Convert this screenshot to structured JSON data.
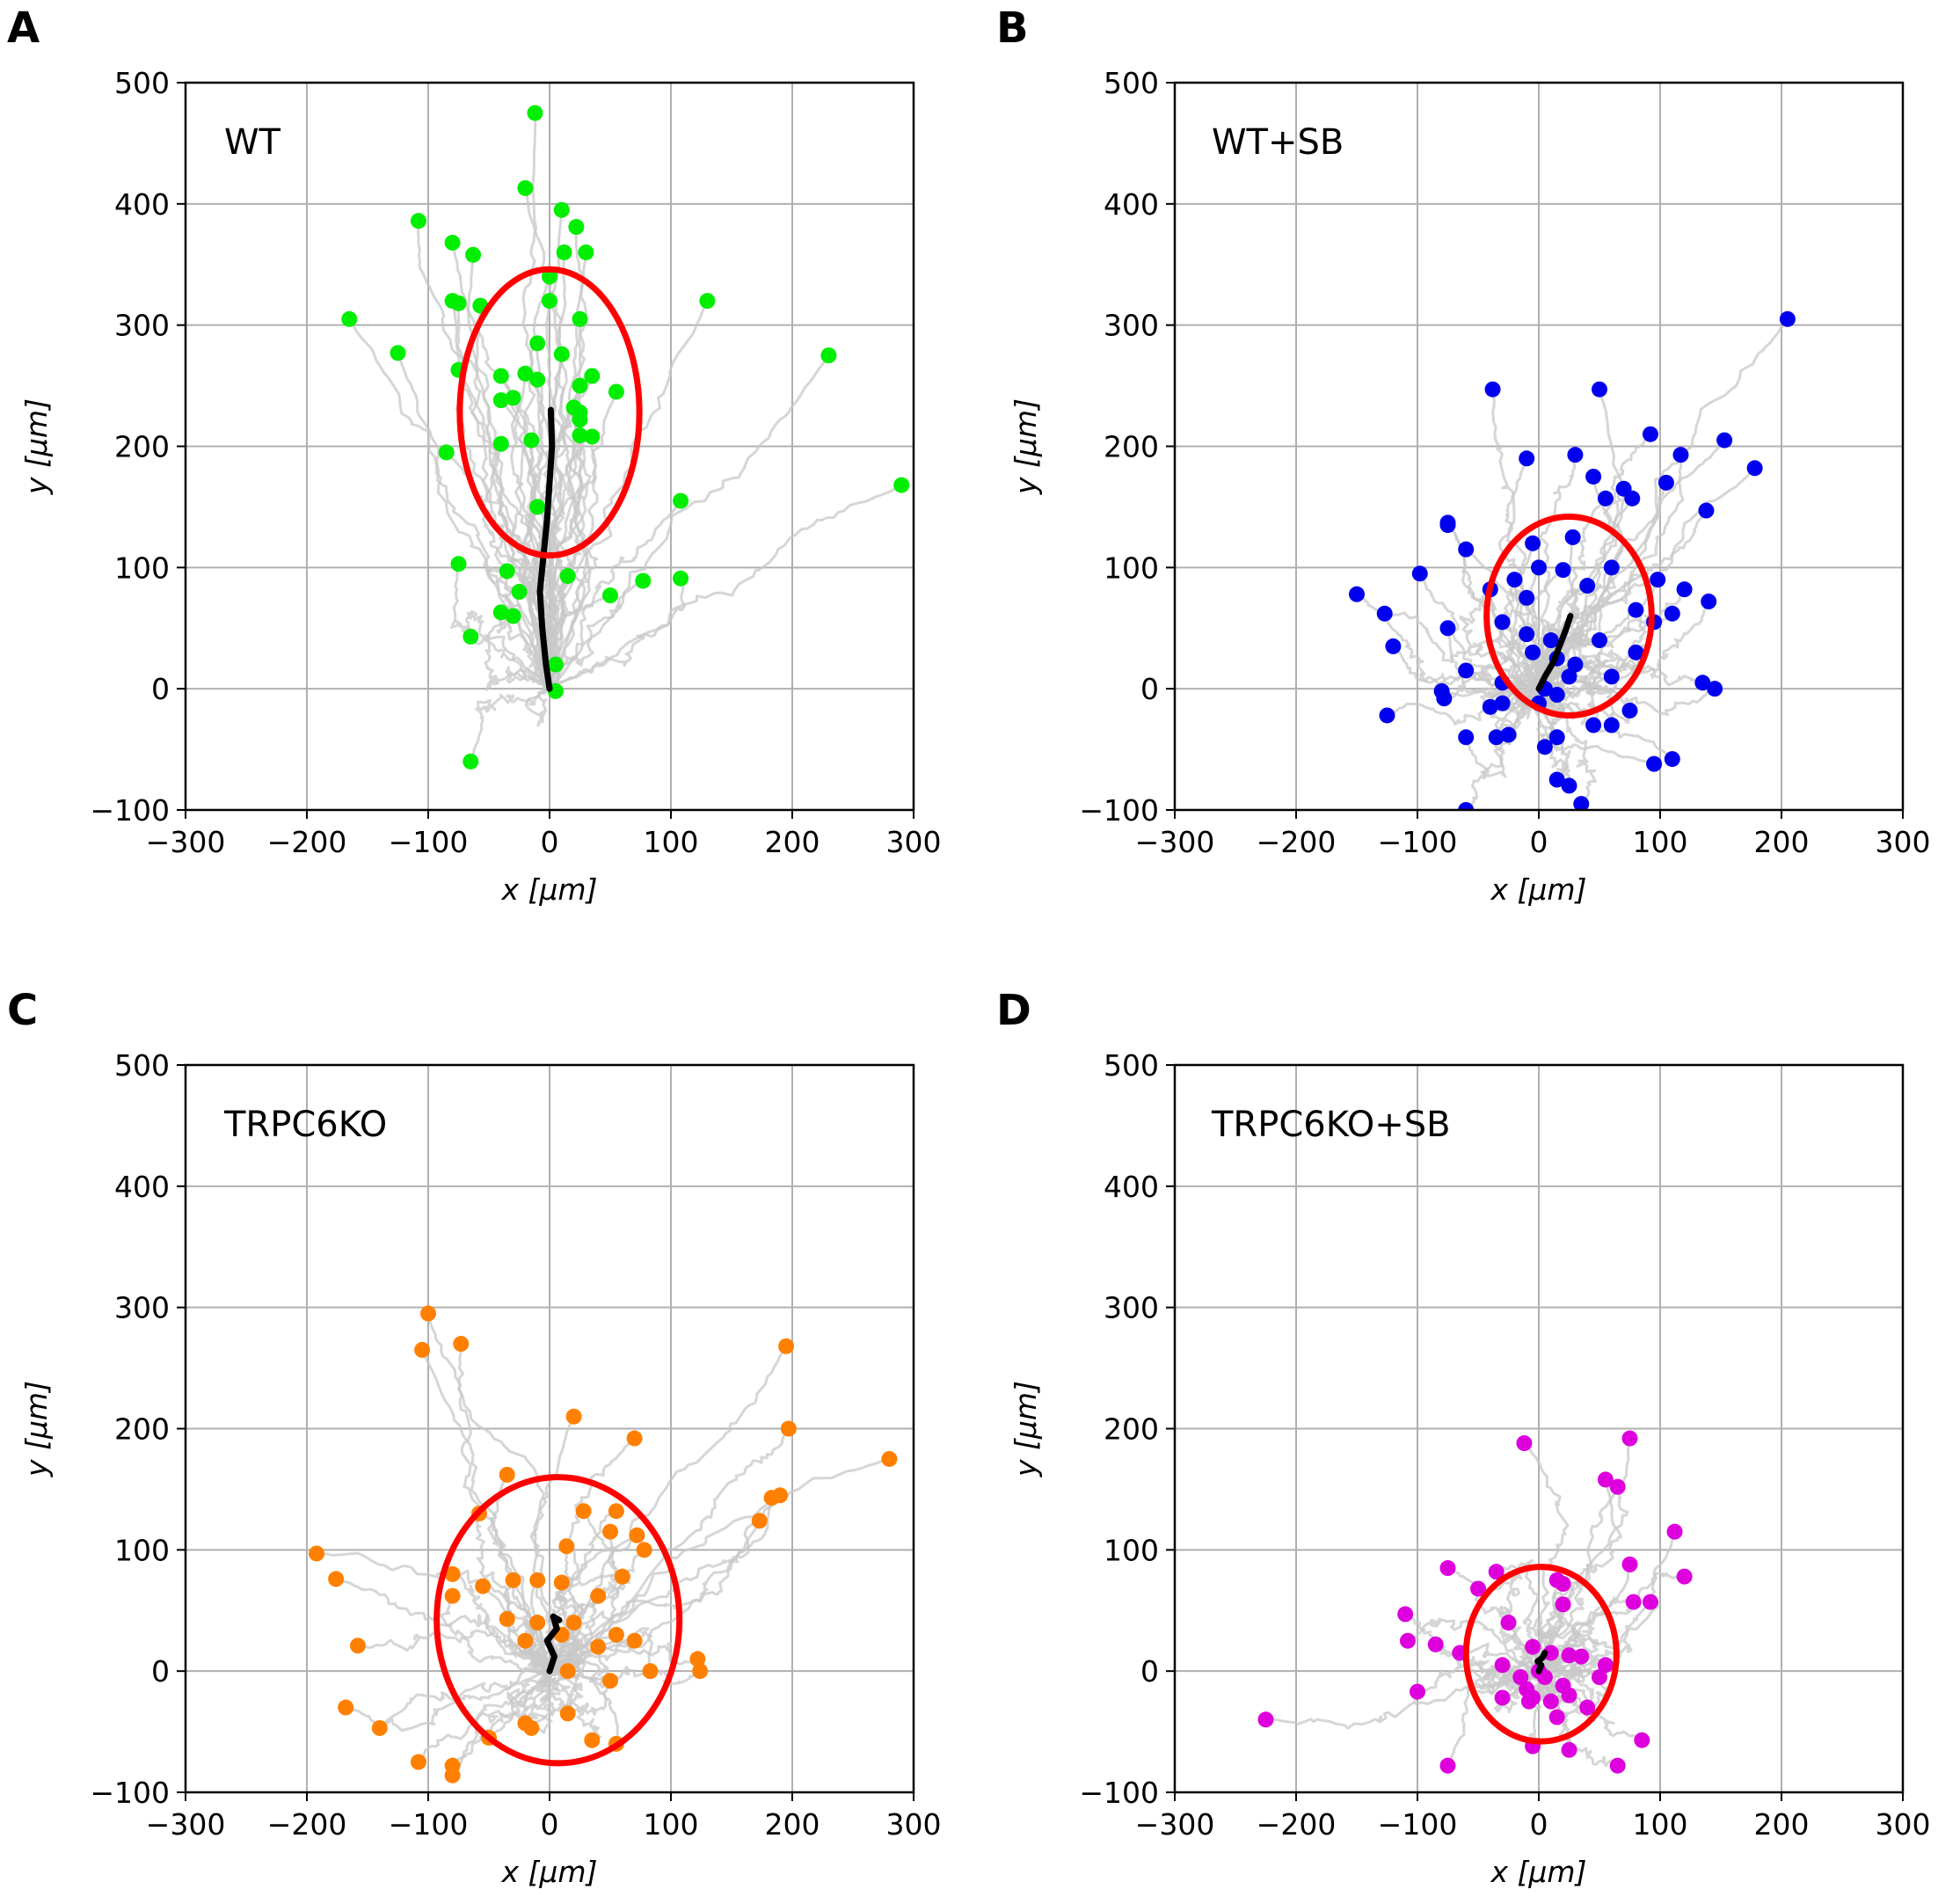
{
  "chart_data": [
    {
      "type": "scatter",
      "panel_letter": "A",
      "title": "WT",
      "xlabel": "x [μm]",
      "ylabel": "y [μm]",
      "xlim": [
        -300,
        300
      ],
      "ylim": [
        -100,
        500
      ],
      "xticks": [
        "−300",
        "−200",
        "−100",
        "0",
        "100",
        "200",
        "300"
      ],
      "yticks": [
        "−100",
        "0",
        "100",
        "200",
        "300",
        "400",
        "500"
      ],
      "grid": true,
      "point_color": "#00ee00",
      "ellipse": {
        "center": [
          0,
          228
        ],
        "semi_axes": [
          74,
          118
        ],
        "color": "#ff0000"
      },
      "mean_trajectory": [
        [
          0,
          0
        ],
        [
          -3,
          20
        ],
        [
          -6,
          50
        ],
        [
          -8,
          80
        ],
        [
          -5,
          110
        ],
        [
          -2,
          140
        ],
        [
          0,
          170
        ],
        [
          2,
          200
        ],
        [
          1,
          230
        ]
      ],
      "endpoints": [
        [
          -12,
          475
        ],
        [
          -20,
          413
        ],
        [
          10,
          395
        ],
        [
          -108,
          386
        ],
        [
          22,
          381
        ],
        [
          -80,
          368
        ],
        [
          12,
          360
        ],
        [
          30,
          360
        ],
        [
          -63,
          358
        ],
        [
          -75,
          318
        ],
        [
          -57,
          316
        ],
        [
          0,
          340
        ],
        [
          -80,
          320
        ],
        [
          0,
          320
        ],
        [
          130,
          320
        ],
        [
          -165,
          305
        ],
        [
          25,
          305
        ],
        [
          -125,
          277
        ],
        [
          -10,
          285
        ],
        [
          230,
          275
        ],
        [
          10,
          276
        ],
        [
          -75,
          263
        ],
        [
          -40,
          258
        ],
        [
          -20,
          260
        ],
        [
          -10,
          255
        ],
        [
          35,
          258
        ],
        [
          25,
          250
        ],
        [
          -40,
          238
        ],
        [
          20,
          232
        ],
        [
          55,
          245
        ],
        [
          -30,
          240
        ],
        [
          25,
          228
        ],
        [
          25,
          222
        ],
        [
          -40,
          202
        ],
        [
          -15,
          205
        ],
        [
          35,
          208
        ],
        [
          -85,
          195
        ],
        [
          25,
          209
        ],
        [
          290,
          168
        ],
        [
          108,
          155
        ],
        [
          -10,
          150
        ],
        [
          -75,
          103
        ],
        [
          -35,
          97
        ],
        [
          15,
          93
        ],
        [
          108,
          91
        ],
        [
          77,
          89
        ],
        [
          -25,
          80
        ],
        [
          50,
          77
        ],
        [
          -40,
          63
        ],
        [
          -30,
          60
        ],
        [
          -65,
          43
        ],
        [
          5,
          20
        ],
        [
          5,
          -2
        ],
        [
          -65,
          -60
        ]
      ],
      "trajectory_seeds": 40
    },
    {
      "type": "scatter",
      "panel_letter": "B",
      "title": "WT+SB",
      "xlabel": "x [μm]",
      "ylabel": "y [μm]",
      "xlim": [
        -300,
        300
      ],
      "ylim": [
        -100,
        500
      ],
      "xticks": [
        "−300",
        "−200",
        "−100",
        "0",
        "100",
        "200",
        "300"
      ],
      "yticks": [
        "−100",
        "0",
        "100",
        "200",
        "300",
        "400",
        "500"
      ],
      "grid": true,
      "point_color": "#0000ee",
      "ellipse": {
        "center": [
          25,
          60
        ],
        "semi_axes": [
          68,
          82
        ],
        "color": "#ff0000"
      },
      "mean_trajectory": [
        [
          0,
          0
        ],
        [
          5,
          10
        ],
        [
          12,
          22
        ],
        [
          17,
          35
        ],
        [
          22,
          48
        ],
        [
          26,
          60
        ]
      ],
      "endpoints": [
        [
          205,
          305
        ],
        [
          -38,
          247
        ],
        [
          50,
          247
        ],
        [
          92,
          210
        ],
        [
          153,
          205
        ],
        [
          -10,
          190
        ],
        [
          30,
          193
        ],
        [
          117,
          193
        ],
        [
          178,
          182
        ],
        [
          45,
          175
        ],
        [
          105,
          170
        ],
        [
          70,
          165
        ],
        [
          55,
          157
        ],
        [
          77,
          157
        ],
        [
          138,
          147
        ],
        [
          -75,
          137
        ],
        [
          -60,
          115
        ],
        [
          -75,
          135
        ],
        [
          28,
          125
        ],
        [
          -5,
          120
        ],
        [
          -98,
          95
        ],
        [
          -150,
          78
        ],
        [
          -127,
          62
        ],
        [
          -120,
          35
        ],
        [
          -40,
          82
        ],
        [
          -20,
          90
        ],
        [
          -10,
          75
        ],
        [
          20,
          98
        ],
        [
          0,
          100
        ],
        [
          40,
          85
        ],
        [
          60,
          100
        ],
        [
          98,
          90
        ],
        [
          120,
          82
        ],
        [
          140,
          72
        ],
        [
          80,
          65
        ],
        [
          110,
          62
        ],
        [
          -75,
          50
        ],
        [
          -30,
          55
        ],
        [
          -10,
          45
        ],
        [
          10,
          40
        ],
        [
          -5,
          30
        ],
        [
          15,
          25
        ],
        [
          30,
          20
        ],
        [
          50,
          40
        ],
        [
          80,
          30
        ],
        [
          95,
          55
        ],
        [
          -60,
          15
        ],
        [
          -30,
          5
        ],
        [
          5,
          0
        ],
        [
          25,
          10
        ],
        [
          60,
          10
        ],
        [
          135,
          5
        ],
        [
          145,
          0
        ],
        [
          -80,
          -2
        ],
        [
          -78,
          -8
        ],
        [
          -40,
          -15
        ],
        [
          -30,
          -12
        ],
        [
          -125,
          -22
        ],
        [
          -60,
          -40
        ],
        [
          -35,
          -40
        ],
        [
          -25,
          -38
        ],
        [
          5,
          -48
        ],
        [
          15,
          -40
        ],
        [
          45,
          -30
        ],
        [
          75,
          -18
        ],
        [
          60,
          -30
        ],
        [
          95,
          -62
        ],
        [
          110,
          -58
        ],
        [
          15,
          -75
        ],
        [
          25,
          -80
        ],
        [
          35,
          -95
        ],
        [
          -60,
          -100
        ],
        [
          0,
          -12
        ],
        [
          15,
          -5
        ]
      ],
      "trajectory_seeds": 60
    },
    {
      "type": "scatter",
      "panel_letter": "C",
      "title": "TRPC6KO",
      "xlabel": "x [μm]",
      "ylabel": "y [μm]",
      "xlim": [
        -300,
        300
      ],
      "ylim": [
        -100,
        500
      ],
      "xticks": [
        "−300",
        "−200",
        "−100",
        "0",
        "100",
        "200",
        "300"
      ],
      "yticks": [
        "−100",
        "0",
        "100",
        "200",
        "300",
        "400",
        "500"
      ],
      "grid": true,
      "point_color": "#ff8000",
      "ellipse": {
        "center": [
          7,
          42
        ],
        "semi_axes": [
          100,
          118
        ],
        "color": "#ff0000"
      },
      "mean_trajectory": [
        [
          0,
          0
        ],
        [
          4,
          12
        ],
        [
          -2,
          25
        ],
        [
          6,
          35
        ],
        [
          3,
          45
        ],
        [
          8,
          42
        ]
      ],
      "endpoints": [
        [
          -100,
          295
        ],
        [
          -105,
          265
        ],
        [
          -73,
          270
        ],
        [
          195,
          268
        ],
        [
          20,
          210
        ],
        [
          70,
          192
        ],
        [
          197,
          200
        ],
        [
          280,
          175
        ],
        [
          -35,
          162
        ],
        [
          190,
          145
        ],
        [
          183,
          143
        ],
        [
          173,
          124
        ],
        [
          -58,
          130
        ],
        [
          28,
          132
        ],
        [
          55,
          132
        ],
        [
          50,
          115
        ],
        [
          72,
          112
        ],
        [
          78,
          100
        ],
        [
          14,
          103
        ],
        [
          -192,
          97
        ],
        [
          -176,
          76
        ],
        [
          -80,
          80
        ],
        [
          -80,
          62
        ],
        [
          -30,
          75
        ],
        [
          -10,
          75
        ],
        [
          10,
          73
        ],
        [
          -55,
          70
        ],
        [
          40,
          62
        ],
        [
          60,
          78
        ],
        [
          -35,
          43
        ],
        [
          -10,
          40
        ],
        [
          20,
          40
        ],
        [
          -20,
          25
        ],
        [
          10,
          30
        ],
        [
          40,
          20
        ],
        [
          55,
          30
        ],
        [
          70,
          25
        ],
        [
          -158,
          21
        ],
        [
          122,
          10
        ],
        [
          124,
          0
        ],
        [
          83,
          0
        ],
        [
          15,
          0
        ],
        [
          50,
          -8
        ],
        [
          -168,
          -30
        ],
        [
          -140,
          -47
        ],
        [
          -15,
          -47
        ],
        [
          15,
          -35
        ],
        [
          -50,
          -55
        ],
        [
          -20,
          -43
        ],
        [
          35,
          -57
        ],
        [
          55,
          -60
        ],
        [
          -108,
          -75
        ],
        [
          -80,
          -78
        ],
        [
          -80,
          -86
        ]
      ],
      "trajectory_seeds": 45
    },
    {
      "type": "scatter",
      "panel_letter": "D",
      "title": "TRPC6KO+SB",
      "xlabel": "x [μm]",
      "ylabel": "y [μm]",
      "xlim": [
        -300,
        300
      ],
      "ylim": [
        -100,
        500
      ],
      "xticks": [
        "−300",
        "−200",
        "−100",
        "0",
        "100",
        "200",
        "300"
      ],
      "yticks": [
        "−100",
        "0",
        "100",
        "200",
        "300",
        "400",
        "500"
      ],
      "grid": true,
      "point_color": "#dd00dd",
      "ellipse": {
        "center": [
          2,
          14
        ],
        "semi_axes": [
          62,
          72
        ],
        "color": "#ff0000"
      },
      "mean_trajectory": [
        [
          0,
          0
        ],
        [
          2,
          5
        ],
        [
          -1,
          8
        ],
        [
          3,
          11
        ],
        [
          5,
          15
        ]
      ],
      "endpoints": [
        [
          -12,
          188
        ],
        [
          75,
          192
        ],
        [
          55,
          158
        ],
        [
          65,
          152
        ],
        [
          112,
          115
        ],
        [
          120,
          78
        ],
        [
          -75,
          85
        ],
        [
          -35,
          82
        ],
        [
          15,
          75
        ],
        [
          20,
          72
        ],
        [
          75,
          88
        ],
        [
          78,
          57
        ],
        [
          92,
          57
        ],
        [
          -50,
          68
        ],
        [
          -110,
          47
        ],
        [
          -85,
          22
        ],
        [
          -108,
          25
        ],
        [
          20,
          55
        ],
        [
          -25,
          40
        ],
        [
          -65,
          15
        ],
        [
          -5,
          20
        ],
        [
          10,
          15
        ],
        [
          25,
          13
        ],
        [
          35,
          12
        ],
        [
          -30,
          5
        ],
        [
          -15,
          -5
        ],
        [
          0,
          0
        ],
        [
          5,
          -5
        ],
        [
          50,
          -5
        ],
        [
          -100,
          -17
        ],
        [
          -10,
          -15
        ],
        [
          20,
          -12
        ],
        [
          -5,
          -22
        ],
        [
          25,
          -20
        ],
        [
          40,
          -30
        ],
        [
          -225,
          -40
        ],
        [
          -30,
          -22
        ],
        [
          10,
          -25
        ],
        [
          -8,
          -25
        ],
        [
          15,
          -38
        ],
        [
          85,
          -57
        ],
        [
          -75,
          -78
        ],
        [
          -5,
          -62
        ],
        [
          25,
          -65
        ],
        [
          65,
          -78
        ],
        [
          55,
          5
        ]
      ],
      "trajectory_seeds": 30
    }
  ]
}
